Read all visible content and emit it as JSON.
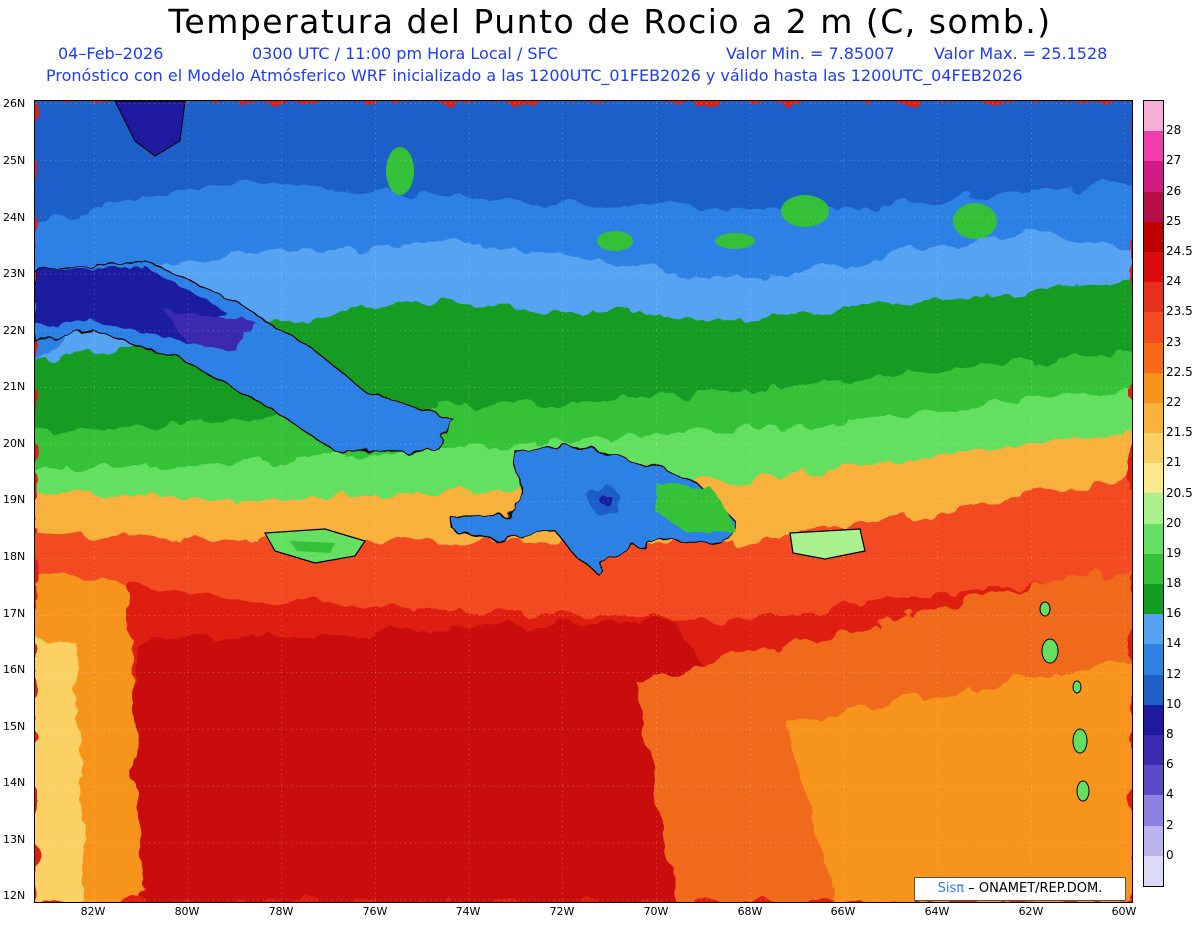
{
  "header": {
    "title": "Temperatura del Punto de Rocio a 2 m (C, somb.)",
    "date": "04–Feb–2026",
    "time": "0300 UTC / 11:00 pm Hora Local / SFC",
    "min": "Valor Min. = 7.85007",
    "max": "Valor Max. = 25.1528",
    "subtitle": "Pronóstico con el Modelo Atmósferico WRF inicializado a las 1200UTC_01FEB2026 y válido hasta las  1200UTC_04FEB2026"
  },
  "axes": {
    "lat_labels": [
      "26N",
      "25N",
      "24N",
      "23N",
      "22N",
      "21N",
      "20N",
      "19N",
      "18N",
      "17N",
      "16N",
      "15N",
      "14N",
      "13N",
      "12N"
    ],
    "lon_labels": [
      "82W",
      "80W",
      "78W",
      "76W",
      "74W",
      "72W",
      "70W",
      "68W",
      "66W",
      "64W",
      "62W",
      "60W"
    ]
  },
  "colorbar": {
    "labels": [
      "28",
      "27",
      "26",
      "25",
      "24.5",
      "24",
      "23.5",
      "23",
      "22.5",
      "22",
      "21.5",
      "21",
      "20.5",
      "20",
      "19",
      "18",
      "16",
      "14",
      "12",
      "10",
      "8",
      "6",
      "4",
      "2",
      "0"
    ],
    "colors": [
      "#f7aed6",
      "#ef3fae",
      "#d21b83",
      "#b40d48",
      "#be0000",
      "#da0b0b",
      "#e7301c",
      "#f24c20",
      "#f66a1a",
      "#f7941d",
      "#f9b13c",
      "#fbd164",
      "#fde98d",
      "#a9f08f",
      "#64df62",
      "#34c139",
      "#139c22",
      "#57a3f2",
      "#2f81e4",
      "#1f5fc8",
      "#1d1aa0",
      "#3a2ab0",
      "#5c4ac8",
      "#8e80e2",
      "#b9b3ee",
      "#dcdaf7"
    ]
  },
  "credit": {
    "sis": "Sisπ",
    "org": "– ONAMET/REP.DOM."
  },
  "colors": {
    "accent_text": "#1e3cff"
  }
}
